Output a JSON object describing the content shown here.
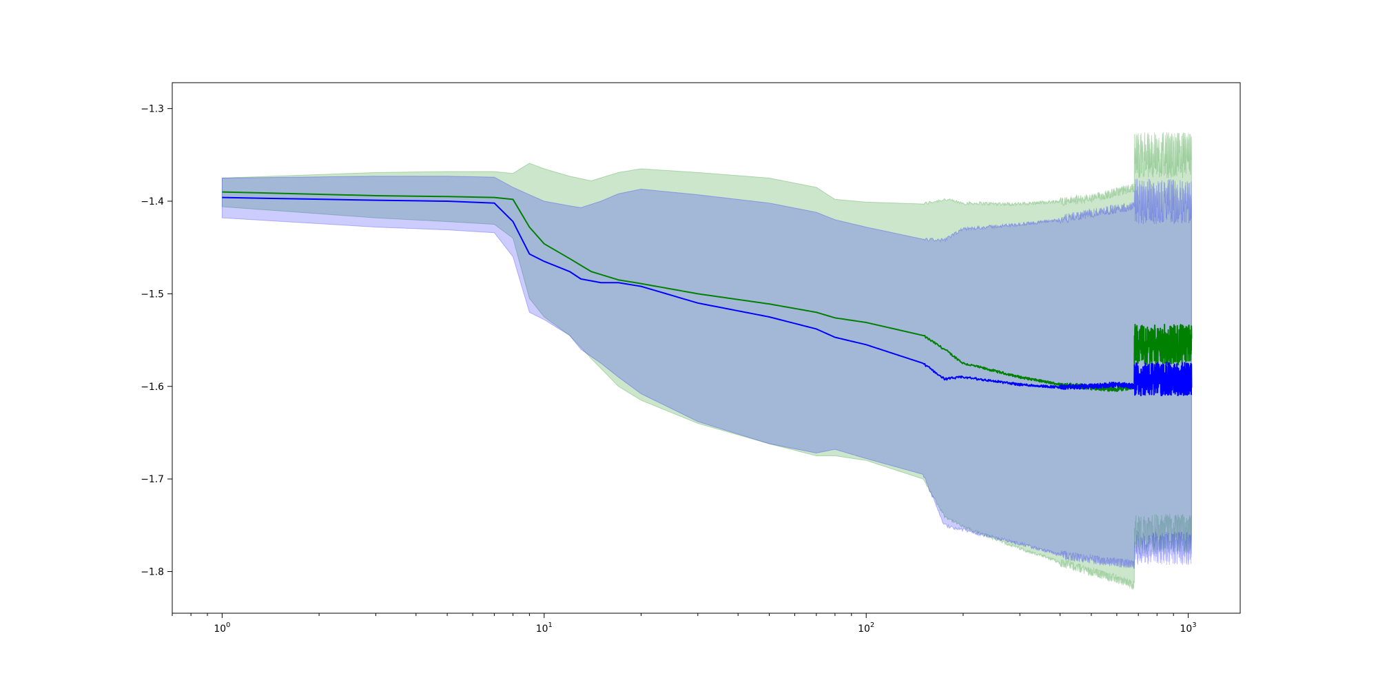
{
  "chart_data": {
    "type": "line",
    "title": "",
    "xlabel": "",
    "ylabel": "",
    "xscale": "log",
    "xlim": [
      0.7,
      1450
    ],
    "ylim": [
      -1.845,
      -1.272
    ],
    "grid": false,
    "legend": "none",
    "x_ticks": [
      {
        "value": 1,
        "base": "10",
        "exp": "0"
      },
      {
        "value": 10,
        "base": "10",
        "exp": "1"
      },
      {
        "value": 100,
        "base": "10",
        "exp": "2"
      },
      {
        "value": 1000,
        "base": "10",
        "exp": "3"
      }
    ],
    "y_ticks": [
      {
        "value": -1.3,
        "label": "−1.3"
      },
      {
        "value": -1.4,
        "label": "−1.4"
      },
      {
        "value": -1.5,
        "label": "−1.5"
      },
      {
        "value": -1.6,
        "label": "−1.6"
      },
      {
        "value": -1.7,
        "label": "−1.7"
      },
      {
        "value": -1.8,
        "label": "−1.8"
      }
    ],
    "series": [
      {
        "color": "#008000",
        "band_color": "#008000",
        "band_opacity": 0.2,
        "x": [
          1,
          3,
          5,
          7,
          8,
          9,
          10,
          12,
          14,
          17,
          20,
          30,
          50,
          70,
          80,
          100,
          150,
          175,
          200,
          300,
          400,
          500,
          600,
          680
        ],
        "mean": [
          -1.39,
          -1.394,
          -1.395,
          -1.396,
          -1.398,
          -1.428,
          -1.446,
          -1.462,
          -1.476,
          -1.485,
          -1.489,
          -1.5,
          -1.511,
          -1.52,
          -1.526,
          -1.531,
          -1.545,
          -1.56,
          -1.575,
          -1.59,
          -1.598,
          -1.601,
          -1.603,
          -1.6
        ],
        "upper": [
          -1.375,
          -1.369,
          -1.368,
          -1.368,
          -1.37,
          -1.359,
          -1.365,
          -1.373,
          -1.378,
          -1.369,
          -1.365,
          -1.369,
          -1.375,
          -1.385,
          -1.398,
          -1.401,
          -1.403,
          -1.398,
          -1.402,
          -1.403,
          -1.4,
          -1.397,
          -1.39,
          -1.385
        ],
        "lower": [
          -1.406,
          -1.418,
          -1.422,
          -1.425,
          -1.44,
          -1.505,
          -1.525,
          -1.545,
          -1.57,
          -1.6,
          -1.615,
          -1.64,
          -1.662,
          -1.675,
          -1.675,
          -1.68,
          -1.7,
          -1.74,
          -1.752,
          -1.775,
          -1.79,
          -1.8,
          -1.808,
          -1.815
        ],
        "noisy_tail": {
          "x_start": 680,
          "x_end": 1024,
          "mean": -1.555,
          "mean_amp": 0.022,
          "upper": -1.35,
          "upper_amp": 0.025,
          "lower": -1.76,
          "lower_amp": 0.022
        }
      },
      {
        "color": "#0000ff",
        "band_color": "#0000ff",
        "band_opacity": 0.2,
        "x": [
          1,
          3,
          5,
          7,
          8,
          9,
          10,
          12,
          13,
          15,
          17,
          20,
          30,
          50,
          70,
          80,
          100,
          150,
          175,
          200,
          300,
          400,
          500,
          600,
          680
        ],
        "mean": [
          -1.396,
          -1.399,
          -1.4,
          -1.402,
          -1.422,
          -1.457,
          -1.465,
          -1.476,
          -1.484,
          -1.488,
          -1.488,
          -1.492,
          -1.51,
          -1.525,
          -1.538,
          -1.547,
          -1.555,
          -1.575,
          -1.592,
          -1.59,
          -1.598,
          -1.601,
          -1.6,
          -1.598,
          -1.6
        ],
        "upper": [
          -1.375,
          -1.373,
          -1.373,
          -1.374,
          -1.385,
          -1.393,
          -1.4,
          -1.405,
          -1.407,
          -1.4,
          -1.392,
          -1.387,
          -1.393,
          -1.402,
          -1.412,
          -1.42,
          -1.428,
          -1.441,
          -1.442,
          -1.43,
          -1.425,
          -1.42,
          -1.413,
          -1.408,
          -1.405
        ],
        "lower": [
          -1.418,
          -1.428,
          -1.431,
          -1.434,
          -1.46,
          -1.52,
          -1.528,
          -1.545,
          -1.56,
          -1.575,
          -1.59,
          -1.608,
          -1.638,
          -1.662,
          -1.672,
          -1.668,
          -1.678,
          -1.695,
          -1.75,
          -1.755,
          -1.77,
          -1.782,
          -1.787,
          -1.79,
          -1.793
        ],
        "noisy_tail": {
          "x_start": 680,
          "x_end": 1024,
          "mean": -1.592,
          "mean_amp": 0.018,
          "upper": -1.4,
          "upper_amp": 0.025,
          "lower": -1.775,
          "lower_amp": 0.018
        }
      }
    ]
  }
}
